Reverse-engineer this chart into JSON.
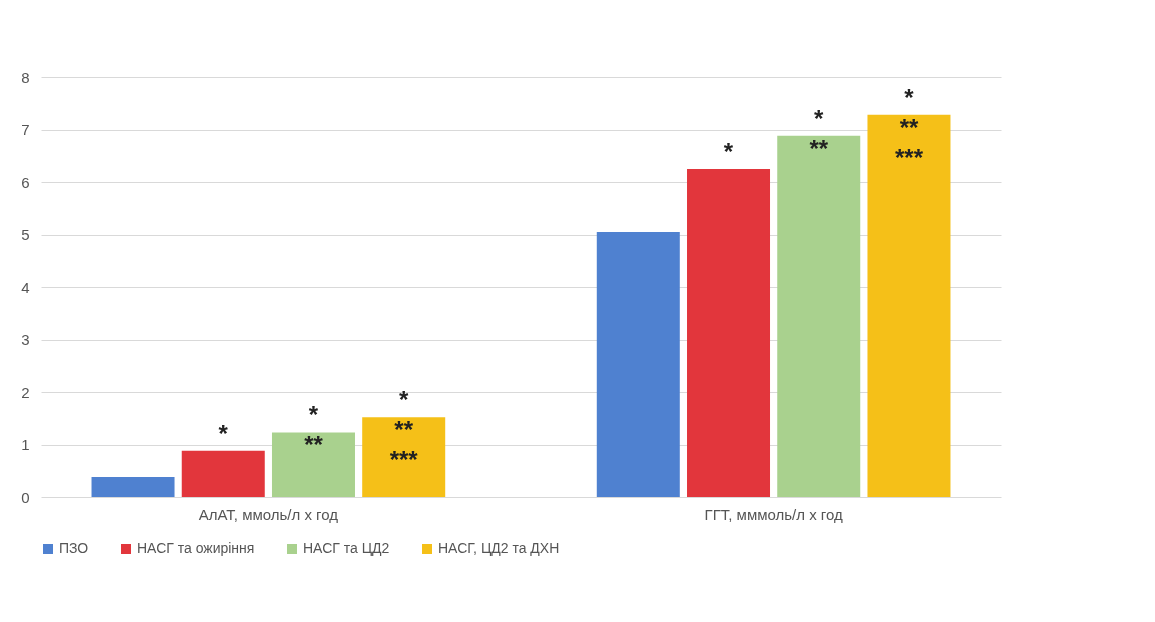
{
  "chart_data": {
    "type": "bar",
    "categories": [
      "АлАТ, ммоль/л х год",
      "ГГТ, мммоль/л х год"
    ],
    "series": [
      {
        "name": "ПЗО",
        "color": "#4f81d0",
        "values": [
          0.38,
          5.05
        ]
      },
      {
        "name": "НАСГ та ожиріння",
        "color": "#e2363c",
        "values": [
          0.88,
          6.25
        ],
        "value_labels": [
          "*",
          "*"
        ]
      },
      {
        "name": "НАСГ та ЦД2",
        "color": "#a9d18e",
        "values": [
          1.23,
          6.88
        ],
        "value_labels": [
          "*\n**",
          "*\n**"
        ]
      },
      {
        "name": "НАСГ, ЦД2 та ДХН",
        "color": "#f5c018",
        "values": [
          1.52,
          7.28
        ],
        "value_labels": [
          "*\n**\n***",
          "*\n**\n***"
        ]
      }
    ],
    "ylim": [
      0,
      8
    ],
    "yticks": [
      0,
      1,
      2,
      3,
      4,
      5,
      6,
      7,
      8
    ],
    "grid": "y",
    "legend": "bottom"
  }
}
